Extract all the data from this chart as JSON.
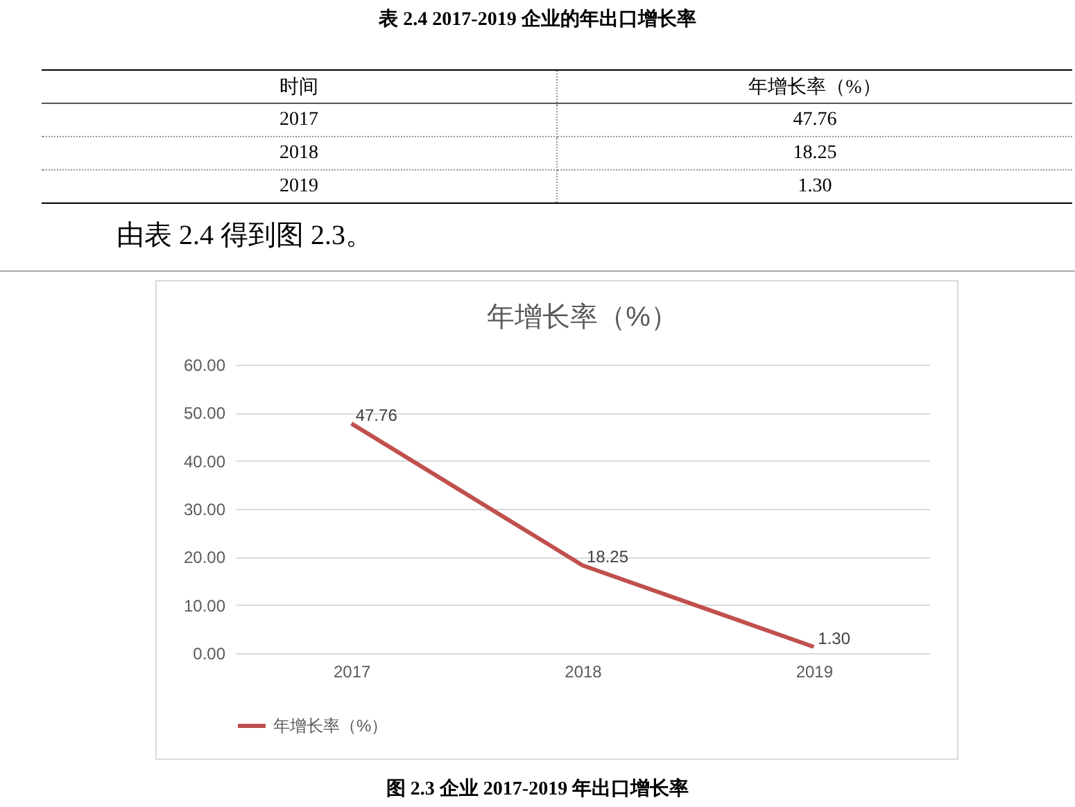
{
  "chart_data": {
    "type": "line",
    "title": "年增长率（%）",
    "categories": [
      "2017",
      "2018",
      "2019"
    ],
    "series": [
      {
        "name": "年增长率（%）",
        "color": "#c0504d",
        "values": [
          47.76,
          18.25,
          1.3
        ],
        "value_labels": [
          "47.76",
          "18.25",
          "1.30"
        ]
      }
    ],
    "ylim": [
      0,
      60
    ],
    "yticks": [
      {
        "value": 0,
        "label": "0.00"
      },
      {
        "value": 10,
        "label": "10.00"
      },
      {
        "value": 20,
        "label": "20.00"
      },
      {
        "value": 30,
        "label": "30.00"
      },
      {
        "value": 40,
        "label": "40.00"
      },
      {
        "value": 50,
        "label": "50.00"
      },
      {
        "value": 60,
        "label": "60.00"
      }
    ],
    "grid": "y",
    "legend": "bottom",
    "marker": "none",
    "line_style": "solid",
    "annotations": [
      "表 2.4 2017-2019 企业的年出口增长率",
      "时间",
      "年增长率（%）",
      "由表 2.4 得到图 2.3。",
      "图 2.3  企业 2017-2019 年出口增长率"
    ]
  }
}
